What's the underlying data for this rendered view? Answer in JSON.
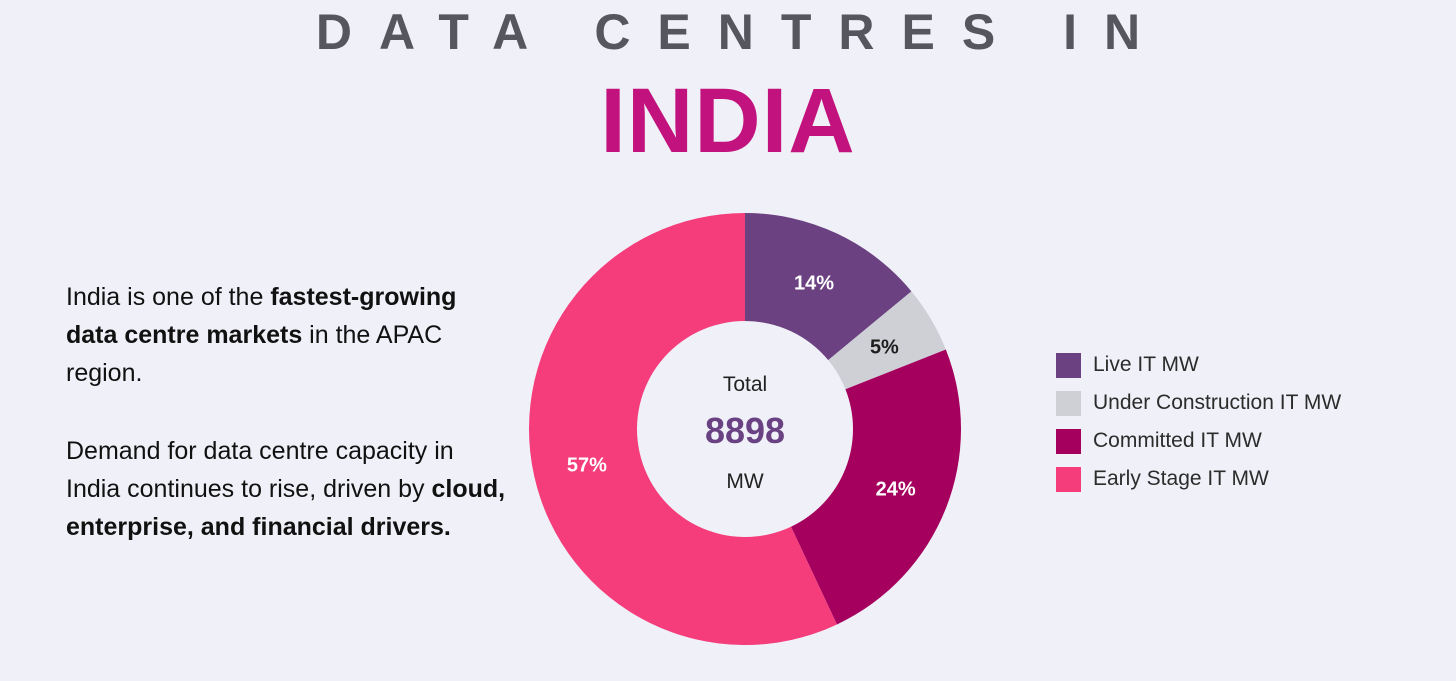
{
  "header": {
    "subtitle": "DATA CENTRES IN",
    "title": "INDIA"
  },
  "intro": {
    "p1_a": "India is one of the ",
    "p1_b": "fastest-growing data centre markets",
    "p1_c": " in the APAC region.",
    "p2_a": "Demand for data centre capacity in India continues to rise, driven by ",
    "p2_b": "cloud, enterprise, and financial drivers."
  },
  "chart_data": {
    "type": "pie",
    "subtype": "donut",
    "center": {
      "label_top": "Total",
      "value": "8898",
      "label_bottom": "MW"
    },
    "categories": [
      "Live IT MW",
      "Under Construction IT MW",
      "Committed IT MW",
      "Early Stage IT MW"
    ],
    "values": [
      14,
      5,
      24,
      57
    ],
    "labels": [
      "14%",
      "5%",
      "24%",
      "57%"
    ],
    "colors": [
      "#6b4181",
      "#cfd0d6",
      "#a5005e",
      "#f53d7b"
    ],
    "label_colors": [
      "#ffffff",
      "#1d1d1d",
      "#ffffff",
      "#ffffff"
    ],
    "legend_position": "right"
  }
}
